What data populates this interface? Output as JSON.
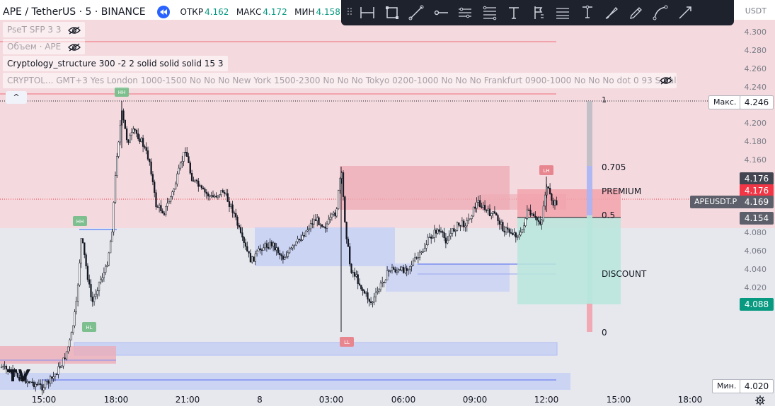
{
  "header": {
    "symbol": "APE / TetherUS · 5 · BINANCE",
    "ohlc": [
      {
        "label": "ОТКР",
        "value": "4.162"
      },
      {
        "label": "МАКС",
        "value": "4.172"
      },
      {
        "label": "МИН",
        "value": "4.158"
      },
      {
        "label": "ЗА",
        "value": ""
      }
    ]
  },
  "indicators": [
    {
      "label": "PseT SFP 3 3",
      "faded": true,
      "eye": true
    },
    {
      "label": "Объем · APE",
      "faded": true,
      "eye": true
    },
    {
      "label": "Cryptology_structure 300 -2 2 solid solid solid 15 3",
      "faded": false,
      "eye": false
    },
    {
      "label": "CRYPTOL... GMT+3 Yes London 1000-1500 No No No New York 1500-2300 No No No Tokyo 0200-1000 No No No Frankfurt 0900-1000 No No No dot 0 93 Small ...",
      "faded": true,
      "eye": true
    }
  ],
  "collapse": "^",
  "toolbar_icons": [
    "grip-icon",
    "horizontal-range-icon",
    "rectangle-icon",
    "trend-line-icon",
    "horizontal-ray-icon",
    "parallel-channel-icon",
    "fib-retracement-icon",
    "text-icon",
    "flag-icon",
    "fib-channel-icon",
    "long-position-icon",
    "brush-icon",
    "highlighter-icon",
    "arc-icon",
    "arrow-icon"
  ],
  "price_axis": {
    "currency": "USDT",
    "ticks": [
      "4.300",
      "4.280",
      "4.260",
      "4.240",
      "4.220",
      "4.200",
      "4.180",
      "4.160",
      "4.140",
      "4.120",
      "4.100",
      "4.080",
      "4.060",
      "4.040",
      "4.020"
    ]
  },
  "time_axis": [
    "15:00",
    "18:00",
    "21:00",
    "8",
    "03:00",
    "06:00",
    "09:00",
    "12:00",
    "15:00",
    "18:00"
  ],
  "tags": {
    "max_label": "Макс.",
    "max_value": "4.246",
    "min_label": "Мин.",
    "min_value": "4.020",
    "symbol_label": "APEUSDT.P",
    "symbol_value": "4.169",
    "tag_dark1": "4.176",
    "tag_red": "4.176",
    "tag_dark2": "4.154",
    "tag_green": "4.088"
  },
  "fib": {
    "level_1": "1",
    "level_705": "0.705",
    "premium": "PREMIUM",
    "level_5": "0.5",
    "discount": "DISCOUNT",
    "level_0": "0"
  },
  "swing_labels": {
    "hh1": "HH",
    "hh2": "HH",
    "hl": "HL",
    "ll": "LL",
    "lh": "LH"
  },
  "colors": {
    "up": "#089981",
    "down": "#f23645",
    "candle": "#131722",
    "premium_zone": "#f6c3c9",
    "discount_zone": "#b7e6dc",
    "blue_zone": "#c5cef5"
  }
}
